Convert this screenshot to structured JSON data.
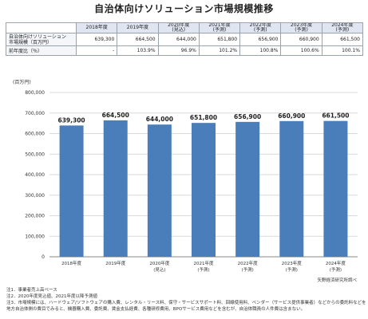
{
  "title": "自治体向けソリューション市場規模推移",
  "table": {
    "headers": [
      "",
      "2018年度",
      "2019年度",
      "2020年度\n(見込)",
      "2021年度\n(予測)",
      "2022年度\n(予測)",
      "2023年度\n(予測)",
      "2024年度\n(予測)"
    ],
    "rows": [
      {
        "label": "自治体向けソリューション\n市場規模（百万円）",
        "cells": [
          "639,300",
          "664,500",
          "644,000",
          "651,800",
          "656,900",
          "660,900",
          "661,500"
        ]
      },
      {
        "label": "前年度比（％）",
        "cells": [
          "-",
          "103.9%",
          "96.9%",
          "101.2%",
          "100.8%",
          "100.6%",
          "100.1%"
        ]
      }
    ]
  },
  "chart_data": {
    "type": "bar",
    "categories": [
      "2018年度",
      "2019年度",
      "2020年度\n(見込)",
      "2021年度\n(予測)",
      "2022年度\n(予測)",
      "2023年度\n(予測)",
      "2024年度\n(予測)"
    ],
    "values": [
      639300,
      664500,
      644000,
      651800,
      656900,
      660900,
      661500
    ],
    "data_labels": [
      "639,300",
      "664,500",
      "644,000",
      "651,800",
      "656,900",
      "660,900",
      "661,500"
    ],
    "ylabel": "(百万円)",
    "ylim": [
      0,
      800000
    ],
    "yticks": [
      0,
      100000,
      200000,
      300000,
      400000,
      500000,
      600000,
      700000,
      800000
    ],
    "ytick_labels": [
      "0",
      "100,000",
      "200,000",
      "300,000",
      "400,000",
      "500,000",
      "600,000",
      "700,000",
      "800,000"
    ],
    "grid": true,
    "bar_color": "#4a7ebb"
  },
  "source": "矢野経済研究所調べ",
  "notes": [
    "注1．事業者売上高ベース",
    "注2．2020年度見込値、2021年度以降予測値",
    "注3．市場規模には、ハードウェア/ソフトウェアの購入費、レンタル・リース料、保守・サービスサポート料、回線使用料、ベンダー（サービス提供事業者）などからの委託料などを含む。",
    "地方自治体側の費目でみると、機器購入費、委託費、賃金支払経費、各種研修費用、BPOサービス費用などを含むが、自治体職員の人件費は含まない。"
  ]
}
